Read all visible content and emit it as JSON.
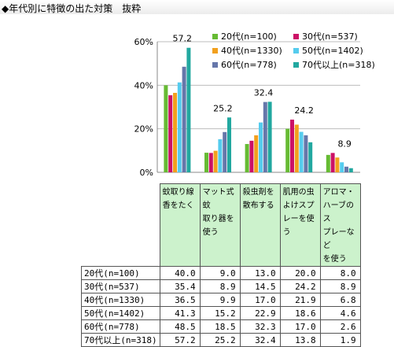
{
  "title": "◆年代別に特徴の出た対策　抜粋",
  "chart_data": {
    "type": "bar",
    "categories": [
      "蚊取り線香をたく",
      "マット式蚊取り器を使う",
      "殺虫剤を散布する",
      "肌用の虫よけスプレーを使う",
      "アロマ・ハーブのスプレーなどを使う"
    ],
    "column_headers": [
      "蚊取り線\n香をたく",
      "マット式蚊\n取り器を\n使う",
      "殺虫剤を\n散布する",
      "肌用の虫\nよけスプ\nレーを使う",
      "アロマ・\nハーブのス\nプレーなど\nを使う"
    ],
    "series": [
      {
        "name": "20代(n=100)",
        "color": "#66bb33",
        "values": [
          40.0,
          9.0,
          13.0,
          20.0,
          8.0
        ]
      },
      {
        "name": "30代(n=537)",
        "color": "#cc1166",
        "values": [
          35.4,
          8.9,
          14.5,
          24.2,
          8.9
        ]
      },
      {
        "name": "40代(n=1330)",
        "color": "#f2a01e",
        "values": [
          36.5,
          9.9,
          17.0,
          21.9,
          6.8
        ]
      },
      {
        "name": "50代(n=1402)",
        "color": "#55ccee",
        "values": [
          41.3,
          15.2,
          22.9,
          18.6,
          4.6
        ]
      },
      {
        "name": "60代(n=778)",
        "color": "#6677aa",
        "values": [
          48.5,
          18.5,
          32.3,
          17.0,
          2.6
        ]
      },
      {
        "name": "70代以上(n=318)",
        "color": "#22a8a0",
        "values": [
          57.2,
          25.2,
          32.4,
          13.8,
          1.9
        ]
      }
    ],
    "data_labels": [
      "57.2",
      "25.2",
      "32.4",
      "24.2",
      "8.9",
      "8.9"
    ],
    "yticks": [
      "0%",
      "20%",
      "40%",
      "60%"
    ],
    "ylim": [
      0,
      60
    ],
    "value_format": "0.0",
    "legend": "top-right, 2 columns"
  }
}
